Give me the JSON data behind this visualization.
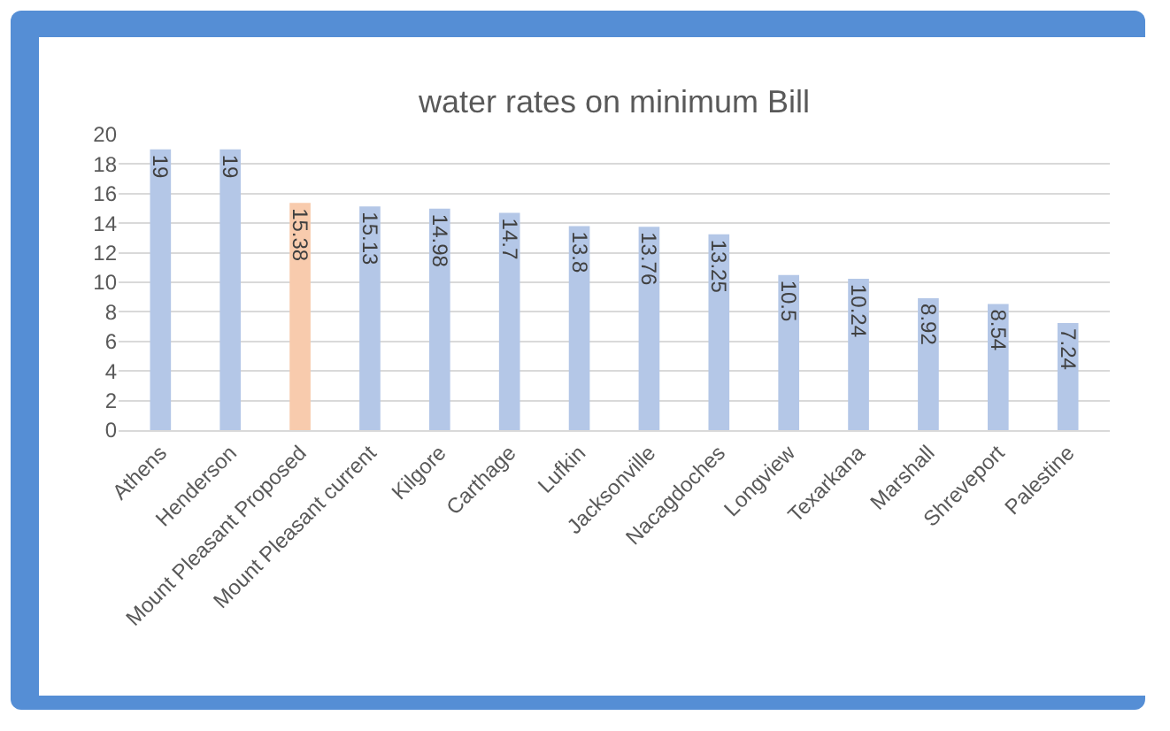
{
  "chart_data": {
    "type": "bar",
    "title": "water rates on minimum Bill",
    "categories": [
      "Athens",
      "Henderson",
      "Mount Pleasant Proposed",
      "Mount Pleasant current",
      "Kilgore",
      "Carthage",
      "Lufkin",
      "Jacksonville",
      "Nacagdoches",
      "Longview",
      "Texarkana",
      "Marshall",
      "Shreveport",
      "Palestine"
    ],
    "values": [
      19,
      19,
      15.38,
      15.13,
      14.98,
      14.7,
      13.8,
      13.76,
      13.25,
      10.5,
      10.24,
      8.92,
      8.54,
      7.24
    ],
    "colors": [
      "#b4c7e7",
      "#b4c7e7",
      "#f8cbad",
      "#b4c7e7",
      "#b4c7e7",
      "#b4c7e7",
      "#b4c7e7",
      "#b4c7e7",
      "#b4c7e7",
      "#b4c7e7",
      "#b4c7e7",
      "#b4c7e7",
      "#b4c7e7",
      "#b4c7e7"
    ],
    "ylim": [
      0,
      20
    ],
    "yticks": [
      0,
      2,
      4,
      6,
      8,
      10,
      12,
      14,
      16,
      18,
      20
    ],
    "grid": "y",
    "data_labels": true
  }
}
